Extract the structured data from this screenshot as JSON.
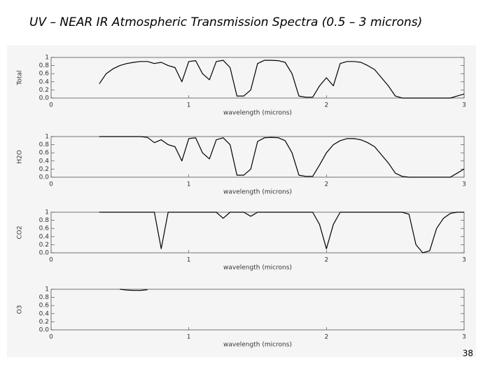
{
  "title": "UV – NEAR IR Atmospheric Transmission Spectra (0.5 – 3 microns)",
  "page_number": "38",
  "chart_data": [
    {
      "type": "line",
      "ylabel": "Total",
      "xlabel": "wavelength (microns)",
      "color": "#000000",
      "xlim": [
        0,
        3
      ],
      "xticks": [
        0,
        1,
        2,
        3
      ],
      "ylim": [
        0,
        1
      ],
      "yticks": [
        {
          "value": 0,
          "label": "0.0"
        },
        0.2,
        0.4,
        0.6,
        0.8,
        1
      ],
      "x": [
        0.35,
        0.4,
        0.45,
        0.5,
        0.55,
        0.6,
        0.65,
        0.7,
        0.75,
        0.8,
        0.85,
        0.9,
        0.95,
        1.0,
        1.05,
        1.1,
        1.15,
        1.2,
        1.25,
        1.3,
        1.35,
        1.4,
        1.45,
        1.5,
        1.55,
        1.6,
        1.65,
        1.7,
        1.75,
        1.8,
        1.85,
        1.9,
        1.95,
        2.0,
        2.05,
        2.1,
        2.15,
        2.2,
        2.25,
        2.3,
        2.35,
        2.4,
        2.45,
        2.5,
        2.55,
        2.6,
        2.65,
        2.7,
        2.75,
        2.8,
        2.85,
        2.9,
        2.95,
        3.0
      ],
      "values": [
        0.35,
        0.6,
        0.72,
        0.8,
        0.85,
        0.88,
        0.9,
        0.9,
        0.85,
        0.88,
        0.8,
        0.75,
        0.4,
        0.9,
        0.92,
        0.6,
        0.45,
        0.9,
        0.93,
        0.75,
        0.05,
        0.05,
        0.2,
        0.85,
        0.93,
        0.93,
        0.92,
        0.88,
        0.6,
        0.05,
        0.02,
        0.02,
        0.3,
        0.5,
        0.3,
        0.85,
        0.9,
        0.9,
        0.88,
        0.8,
        0.7,
        0.5,
        0.3,
        0.05,
        0,
        0,
        0,
        0,
        0,
        0,
        0,
        0,
        0.05,
        0.1
      ]
    },
    {
      "type": "line",
      "ylabel": "H2O",
      "xlabel": "wavelength (microns)",
      "color": "#000000",
      "xlim": [
        0,
        3
      ],
      "xticks": [
        0,
        1,
        2,
        3
      ],
      "ylim": [
        0,
        1
      ],
      "yticks": [
        {
          "value": 0,
          "label": "0.0"
        },
        0.2,
        0.4,
        0.6,
        0.8,
        1
      ],
      "x": [
        0.35,
        0.4,
        0.45,
        0.5,
        0.55,
        0.6,
        0.65,
        0.7,
        0.75,
        0.8,
        0.85,
        0.9,
        0.95,
        1.0,
        1.05,
        1.1,
        1.15,
        1.2,
        1.25,
        1.3,
        1.35,
        1.4,
        1.45,
        1.5,
        1.55,
        1.6,
        1.65,
        1.7,
        1.75,
        1.8,
        1.85,
        1.9,
        1.95,
        2.0,
        2.05,
        2.1,
        2.15,
        2.2,
        2.25,
        2.3,
        2.35,
        2.4,
        2.45,
        2.5,
        2.55,
        2.6,
        2.65,
        2.7,
        2.75,
        2.8,
        2.85,
        2.9,
        2.95,
        3.0
      ],
      "values": [
        1,
        1,
        1,
        1,
        1,
        1,
        1,
        0.98,
        0.85,
        0.92,
        0.8,
        0.75,
        0.4,
        0.95,
        0.97,
        0.6,
        0.45,
        0.92,
        0.97,
        0.8,
        0.05,
        0.05,
        0.2,
        0.88,
        0.97,
        0.98,
        0.97,
        0.9,
        0.6,
        0.05,
        0.02,
        0.02,
        0.3,
        0.6,
        0.8,
        0.9,
        0.95,
        0.95,
        0.92,
        0.85,
        0.75,
        0.55,
        0.35,
        0.1,
        0.02,
        0,
        0,
        0,
        0,
        0,
        0,
        0,
        0.1,
        0.2
      ]
    },
    {
      "type": "line",
      "ylabel": "CO2",
      "xlabel": "wavelength (microns)",
      "color": "#000000",
      "xlim": [
        0,
        3
      ],
      "xticks": [
        0,
        1,
        2,
        3
      ],
      "ylim": [
        0,
        1
      ],
      "yticks": [
        {
          "value": 0,
          "label": "0.0"
        },
        0.2,
        0.4,
        0.6,
        0.8,
        1
      ],
      "x": [
        0.35,
        0.4,
        0.45,
        0.5,
        0.55,
        0.6,
        0.65,
        0.7,
        0.75,
        0.8,
        0.85,
        0.9,
        0.95,
        1.0,
        1.05,
        1.1,
        1.15,
        1.2,
        1.25,
        1.3,
        1.35,
        1.4,
        1.45,
        1.5,
        1.55,
        1.6,
        1.65,
        1.7,
        1.75,
        1.8,
        1.85,
        1.9,
        1.95,
        2.0,
        2.05,
        2.1,
        2.15,
        2.2,
        2.25,
        2.3,
        2.35,
        2.4,
        2.45,
        2.5,
        2.55,
        2.6,
        2.65,
        2.7,
        2.75,
        2.8,
        2.85,
        2.9,
        2.95,
        3.0
      ],
      "values": [
        1,
        1,
        1,
        1,
        1,
        1,
        1,
        1,
        1,
        0.1,
        1,
        1,
        1,
        1,
        1,
        1,
        1,
        1,
        0.85,
        1,
        1,
        1,
        0.9,
        1,
        1,
        1,
        1,
        1,
        1,
        1,
        1,
        1,
        0.7,
        0.1,
        0.7,
        1,
        1,
        1,
        1,
        1,
        1,
        1,
        1,
        1,
        1,
        0.95,
        0.2,
        0,
        0.05,
        0.6,
        0.85,
        0.97,
        1,
        1
      ]
    },
    {
      "type": "line",
      "ylabel": "O3",
      "xlabel": "wavelength (microns)",
      "color": "#000000",
      "xlim": [
        0,
        3
      ],
      "xticks": [
        0,
        1,
        2,
        3
      ],
      "ylim": [
        0,
        1
      ],
      "yticks": [
        {
          "value": 0,
          "label": "0.0"
        },
        0.2,
        0.4,
        0.6,
        0.8,
        1
      ],
      "x": [
        0.5,
        0.55,
        0.6,
        0.65,
        0.7
      ],
      "values": [
        1,
        0.98,
        0.97,
        0.97,
        0.99
      ]
    }
  ]
}
